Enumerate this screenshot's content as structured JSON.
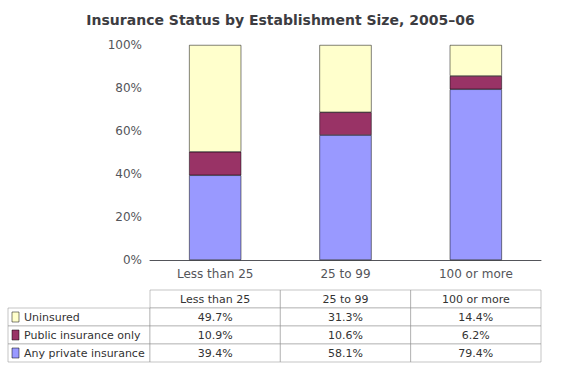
{
  "chart_data": {
    "type": "bar",
    "title": "Insurance Status by Establishment Size, 2005–06",
    "categories": [
      "Less than 25",
      "25 to 99",
      "100 or more"
    ],
    "stacked": true,
    "series": [
      {
        "name": "Any private insurance",
        "color": "#9999FF",
        "values": [
          0.394,
          0.581,
          0.794
        ],
        "value_labels": [
          "39.4%",
          "58.1%",
          "79.4%"
        ]
      },
      {
        "name": "Public insurance only",
        "color": "#993366",
        "values": [
          0.109,
          0.106,
          0.062
        ],
        "value_labels": [
          "10.9%",
          "10.6%",
          "6.2%"
        ]
      },
      {
        "name": "Uninsured",
        "color": "#FFFFCC",
        "values": [
          0.497,
          0.313,
          0.144
        ],
        "value_labels": [
          "49.7%",
          "31.3%",
          "14.4%"
        ]
      }
    ],
    "ylim": [
      0,
      1.0
    ],
    "yticks": [
      {
        "value": 0.0,
        "label": "0%"
      },
      {
        "value": 0.2,
        "label": "20%"
      },
      {
        "value": 0.4,
        "label": "40%"
      },
      {
        "value": 0.6,
        "label": "60%"
      },
      {
        "value": 0.8,
        "label": "80%"
      },
      {
        "value": 1.0,
        "label": "100%"
      }
    ],
    "grid": false
  }
}
